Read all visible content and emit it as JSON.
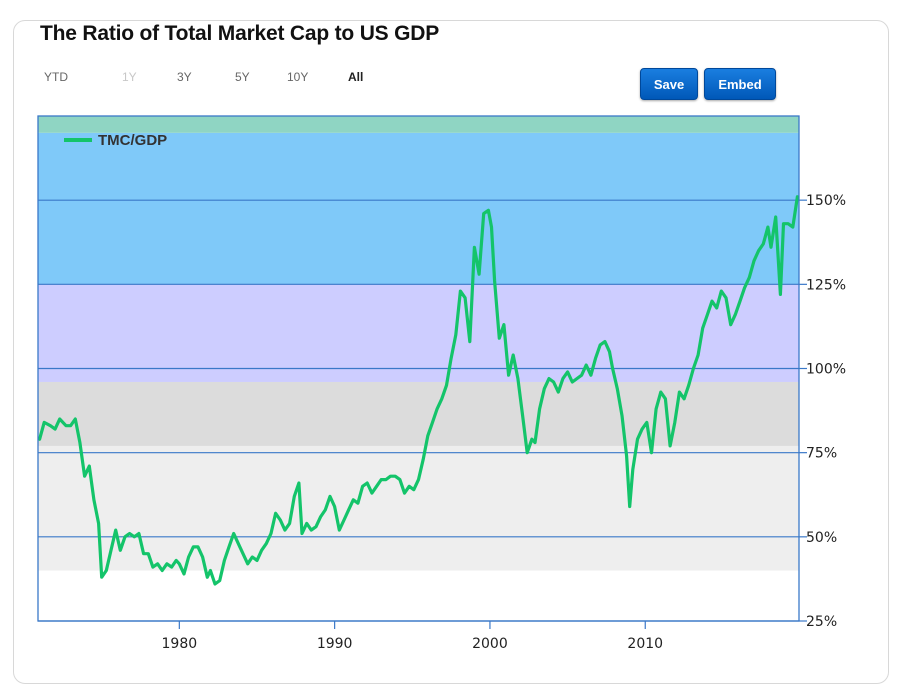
{
  "title": "The Ratio of Total Market Cap to US GDP",
  "ranges": [
    {
      "label": "YTD",
      "state": "normal"
    },
    {
      "label": "1Y",
      "state": "disabled"
    },
    {
      "label": "3Y",
      "state": "normal"
    },
    {
      "label": "5Y",
      "state": "normal"
    },
    {
      "label": "10Y",
      "state": "normal"
    },
    {
      "label": "All",
      "state": "active"
    }
  ],
  "buttons": {
    "save": "Save",
    "embed": "Embed"
  },
  "colors": {
    "line": "#14c46a",
    "band_very_overvalued": "#7fc9f9",
    "band_overvalued": "#cdcdff",
    "band_fair": "#dcdcdc",
    "band_undervalued": "#eeeeee",
    "band_top_stripe": "#8fd5c3",
    "gridline": "#3a78c8",
    "button": "#0a6bd0"
  },
  "chart_data": {
    "type": "line",
    "title": "",
    "xlabel": "",
    "ylabel": "",
    "xlim": [
      1970.9,
      2019.9
    ],
    "ylim": [
      25,
      175
    ],
    "x_ticks": [
      1980,
      1990,
      2000,
      2010
    ],
    "y_ticks": [
      25,
      50,
      75,
      100,
      125,
      150
    ],
    "y_tick_labels": [
      "25%",
      "50%",
      "75%",
      "100%",
      "125%",
      "150%"
    ],
    "legend": {
      "position": "top-left",
      "entries": [
        "TMC/GDP"
      ]
    },
    "bands": [
      {
        "from": 40,
        "to": 77
      },
      {
        "from": 77,
        "to": 96
      },
      {
        "from": 96,
        "to": 125
      },
      {
        "from": 125,
        "to": 170
      },
      {
        "from": 170,
        "to": 175
      }
    ],
    "series": [
      {
        "name": "TMC/GDP",
        "x": [
          1971.0,
          1971.3,
          1971.7,
          1972.0,
          1972.3,
          1972.7,
          1973.0,
          1973.3,
          1973.6,
          1973.9,
          1974.2,
          1974.5,
          1974.8,
          1975.0,
          1975.3,
          1975.6,
          1975.9,
          1976.2,
          1976.5,
          1976.8,
          1977.1,
          1977.4,
          1977.7,
          1978.0,
          1978.3,
          1978.6,
          1978.9,
          1979.2,
          1979.5,
          1979.8,
          1980.0,
          1980.3,
          1980.6,
          1980.9,
          1981.2,
          1981.5,
          1981.8,
          1982.0,
          1982.3,
          1982.6,
          1982.9,
          1983.2,
          1983.5,
          1983.8,
          1984.1,
          1984.4,
          1984.7,
          1985.0,
          1985.3,
          1985.6,
          1985.9,
          1986.2,
          1986.5,
          1986.8,
          1987.1,
          1987.4,
          1987.7,
          1987.9,
          1988.2,
          1988.5,
          1988.8,
          1989.1,
          1989.4,
          1989.7,
          1990.0,
          1990.3,
          1990.6,
          1990.9,
          1991.2,
          1991.5,
          1991.8,
          1992.1,
          1992.4,
          1992.7,
          1993.0,
          1993.3,
          1993.6,
          1993.9,
          1994.2,
          1994.5,
          1994.8,
          1995.1,
          1995.4,
          1995.7,
          1996.0,
          1996.3,
          1996.6,
          1996.9,
          1997.2,
          1997.5,
          1997.8,
          1998.1,
          1998.4,
          1998.7,
          1999.0,
          1999.3,
          1999.6,
          1999.9,
          2000.1,
          2000.3,
          2000.6,
          2000.9,
          2001.2,
          2001.5,
          2001.8,
          2002.1,
          2002.4,
          2002.7,
          2002.9,
          2003.2,
          2003.5,
          2003.8,
          2004.1,
          2004.4,
          2004.7,
          2005.0,
          2005.3,
          2005.6,
          2005.9,
          2006.2,
          2006.5,
          2006.8,
          2007.1,
          2007.4,
          2007.7,
          2007.9,
          2008.2,
          2008.5,
          2008.8,
          2009.0,
          2009.2,
          2009.5,
          2009.8,
          2010.1,
          2010.4,
          2010.7,
          2011.0,
          2011.3,
          2011.6,
          2011.9,
          2012.2,
          2012.5,
          2012.8,
          2013.1,
          2013.4,
          2013.7,
          2014.0,
          2014.3,
          2014.6,
          2014.9,
          2015.2,
          2015.5,
          2015.8,
          2016.1,
          2016.4,
          2016.7,
          2017.0,
          2017.3,
          2017.6,
          2017.9,
          2018.1,
          2018.4,
          2018.7,
          2018.9,
          2019.2,
          2019.5,
          2019.8
        ],
        "values": [
          79,
          84,
          83,
          82,
          85,
          83,
          83,
          85,
          78,
          68,
          71,
          61,
          54,
          38,
          40,
          46,
          52,
          46,
          50,
          51,
          50,
          51,
          45,
          45,
          41,
          42,
          40,
          42,
          41,
          43,
          42,
          39,
          44,
          47,
          47,
          44,
          38,
          40,
          36,
          37,
          43,
          47,
          51,
          48,
          45,
          42,
          44,
          43,
          46,
          48,
          51,
          57,
          55,
          52,
          54,
          62,
          66,
          51,
          54,
          52,
          53,
          56,
          58,
          62,
          59,
          52,
          55,
          58,
          61,
          60,
          65,
          66,
          63,
          65,
          67,
          67,
          68,
          68,
          67,
          63,
          65,
          64,
          67,
          73,
          80,
          84,
          88,
          91,
          95,
          103,
          110,
          123,
          121,
          108,
          136,
          128,
          146,
          147,
          142,
          126,
          109,
          113,
          98,
          104,
          97,
          86,
          75,
          79,
          78,
          88,
          94,
          97,
          96,
          93,
          97,
          99,
          96,
          97,
          98,
          101,
          98,
          103,
          107,
          108,
          105,
          100,
          94,
          86,
          74,
          59,
          70,
          79,
          82,
          84,
          75,
          88,
          93,
          91,
          77,
          84,
          93,
          91,
          95,
          100,
          104,
          112,
          116,
          120,
          118,
          123,
          121,
          113,
          116,
          120,
          124,
          127,
          132,
          135,
          137,
          142,
          136,
          145,
          122,
          143,
          143,
          142,
          151
        ]
      }
    ]
  }
}
